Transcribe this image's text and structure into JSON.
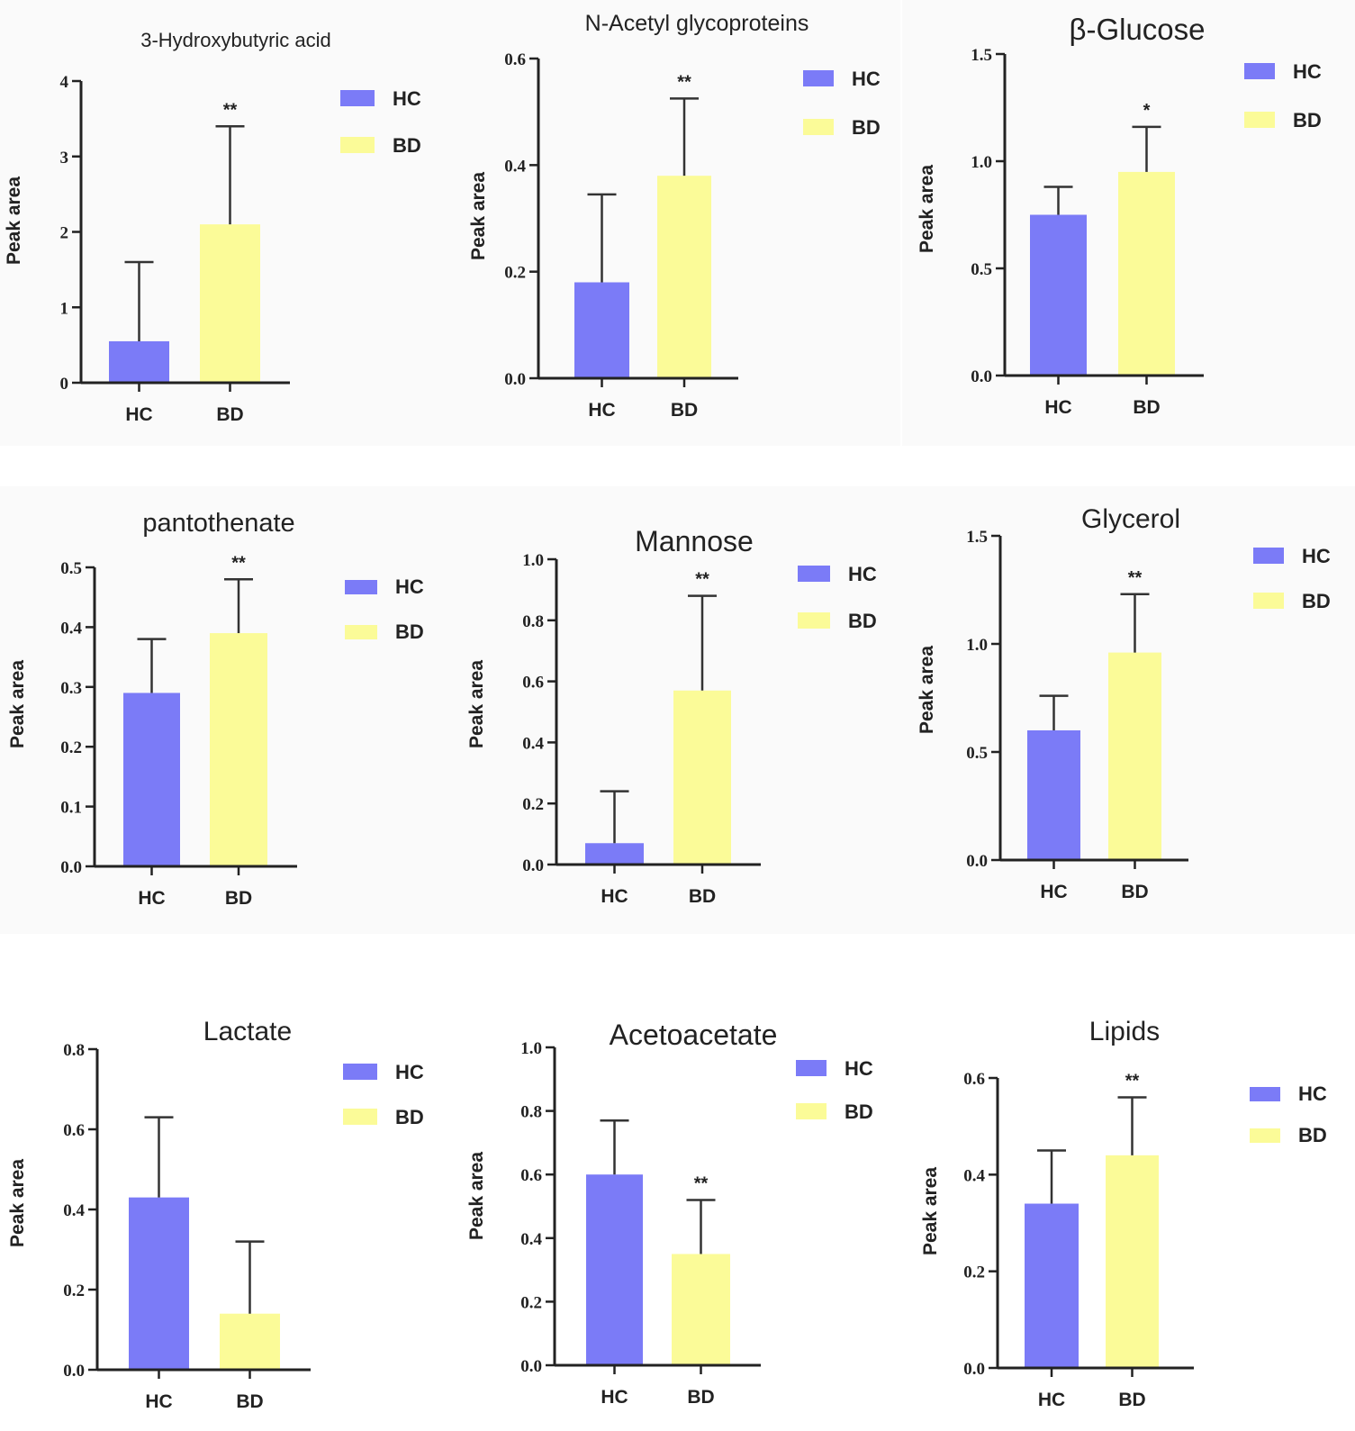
{
  "chart_data": [
    {
      "type": "bar",
      "title": "3-Hydroxybutyric acid",
      "ylabel": "Peak area",
      "categories": [
        "HC",
        "BD"
      ],
      "values": [
        0.55,
        2.1
      ],
      "errors": [
        1.05,
        1.3
      ],
      "ylim": [
        0,
        4
      ],
      "yticks": [
        "0",
        "1",
        "2",
        "3",
        "4"
      ],
      "significance": "**",
      "legend": [
        "HC",
        "BD"
      ],
      "colors": [
        "#7b7bf7",
        "#fbfb98"
      ]
    },
    {
      "type": "bar",
      "title": "N-Acetyl glycoproteins",
      "ylabel": "Peak area",
      "categories": [
        "HC",
        "BD"
      ],
      "values": [
        0.18,
        0.38
      ],
      "errors": [
        0.165,
        0.145
      ],
      "ylim": [
        0,
        0.6
      ],
      "yticks": [
        "0.0",
        "0.2",
        "0.4",
        "0.6"
      ],
      "significance": "**",
      "legend": [
        "HC",
        "BD"
      ],
      "colors": [
        "#7b7bf7",
        "#fbfb98"
      ]
    },
    {
      "type": "bar",
      "title": "β-Glucose",
      "ylabel": "Peak area",
      "categories": [
        "HC",
        "BD"
      ],
      "values": [
        0.75,
        0.95
      ],
      "errors": [
        0.13,
        0.21
      ],
      "ylim": [
        0,
        1.5
      ],
      "yticks": [
        "0.0",
        "0.5",
        "1.0",
        "1.5"
      ],
      "significance": "*",
      "legend": [
        "HC",
        "BD"
      ],
      "colors": [
        "#7b7bf7",
        "#fbfb98"
      ]
    },
    {
      "type": "bar",
      "title": "pantothenate",
      "ylabel": "Peak area",
      "categories": [
        "HC",
        "BD"
      ],
      "values": [
        0.29,
        0.39
      ],
      "errors": [
        0.09,
        0.09
      ],
      "ylim": [
        0,
        0.5
      ],
      "yticks": [
        "0.0",
        "0.1",
        "0.2",
        "0.3",
        "0.4",
        "0.5"
      ],
      "significance": "**",
      "legend": [
        "HC",
        "BD"
      ],
      "colors": [
        "#7b7bf7",
        "#fbfb98"
      ]
    },
    {
      "type": "bar",
      "title": "Mannose",
      "ylabel": "Peak area",
      "categories": [
        "HC",
        "BD"
      ],
      "values": [
        0.07,
        0.57
      ],
      "errors": [
        0.17,
        0.31
      ],
      "ylim": [
        0,
        1.0
      ],
      "yticks": [
        "0.0",
        "0.2",
        "0.4",
        "0.6",
        "0.8",
        "1.0"
      ],
      "significance": "**",
      "legend": [
        "HC",
        "BD"
      ],
      "colors": [
        "#7b7bf7",
        "#fbfb98"
      ]
    },
    {
      "type": "bar",
      "title": "Glycerol",
      "ylabel": "Peak area",
      "categories": [
        "HC",
        "BD"
      ],
      "values": [
        0.6,
        0.96
      ],
      "errors": [
        0.16,
        0.27
      ],
      "ylim": [
        0,
        1.5
      ],
      "yticks": [
        "0.0",
        "0.5",
        "1.0",
        "1.5"
      ],
      "significance": "**",
      "legend": [
        "HC",
        "BD"
      ],
      "colors": [
        "#7b7bf7",
        "#fbfb98"
      ]
    },
    {
      "type": "bar",
      "title": "Lactate",
      "ylabel": "Peak area",
      "categories": [
        "HC",
        "BD"
      ],
      "values": [
        0.43,
        0.14
      ],
      "errors": [
        0.2,
        0.18
      ],
      "ylim": [
        0,
        0.8
      ],
      "yticks": [
        "0.0",
        "0.2",
        "0.4",
        "0.6",
        "0.8"
      ],
      "significance": "",
      "legend": [
        "HC",
        "BD"
      ],
      "colors": [
        "#7b7bf7",
        "#fbfb98"
      ]
    },
    {
      "type": "bar",
      "title": "Acetoacetate",
      "ylabel": "Peak area",
      "categories": [
        "HC",
        "BD"
      ],
      "values": [
        0.6,
        0.35
      ],
      "errors": [
        0.17,
        0.17
      ],
      "ylim": [
        0,
        1.0
      ],
      "yticks": [
        "0.0",
        "0.2",
        "0.4",
        "0.6",
        "0.8",
        "1.0"
      ],
      "significance": "**",
      "legend": [
        "HC",
        "BD"
      ],
      "colors": [
        "#7b7bf7",
        "#fbfb98"
      ]
    },
    {
      "type": "bar",
      "title": "Lipids",
      "ylabel": "Peak area",
      "categories": [
        "HC",
        "BD"
      ],
      "values": [
        0.34,
        0.44
      ],
      "errors": [
        0.11,
        0.12
      ],
      "ylim": [
        0,
        0.6
      ],
      "yticks": [
        "0.0",
        "0.2",
        "0.4",
        "0.6"
      ],
      "significance": "**",
      "legend": [
        "HC",
        "BD"
      ],
      "colors": [
        "#7b7bf7",
        "#fbfb98"
      ]
    }
  ]
}
